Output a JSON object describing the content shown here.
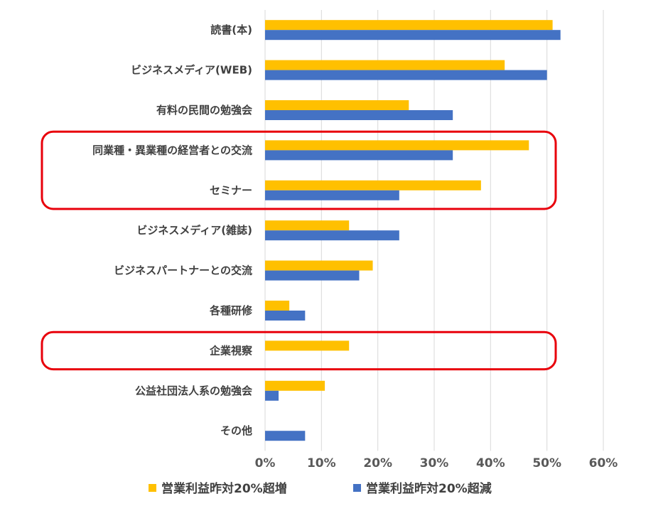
{
  "chart_data": {
    "type": "bar",
    "orientation": "horizontal",
    "categories": [
      "読書(本)",
      "ビジネスメディア(WEB)",
      "有料の民間の勉強会",
      "同業種・異業種の経営者との交流",
      "セミナー",
      "ビジネスメディア(雑誌)",
      "ビジネスパートナーとの交流",
      "各種研修",
      "企業視察",
      "公益社団法人系の勉強会",
      "その他"
    ],
    "series": [
      {
        "name": "営業利益昨対20%超増",
        "color": "#ffc000",
        "values": [
          51,
          42.5,
          25.5,
          46.8,
          38.3,
          14.9,
          19.1,
          4.3,
          14.9,
          10.6,
          0
        ]
      },
      {
        "name": "営業利益昨対20%超減",
        "color": "#4472c4",
        "values": [
          52.4,
          50,
          33.3,
          33.3,
          23.8,
          23.8,
          16.7,
          7.1,
          0,
          2.4,
          7.1
        ]
      }
    ],
    "x_ticks": [
      "0%",
      "10%",
      "20%",
      "30%",
      "40%",
      "50%",
      "60%"
    ],
    "xlim": [
      0,
      60
    ],
    "grid": true,
    "legend_position": "bottom",
    "highlight_groups": [
      [
        3,
        4
      ],
      [
        8
      ]
    ],
    "highlight_color": "#e8000b"
  }
}
